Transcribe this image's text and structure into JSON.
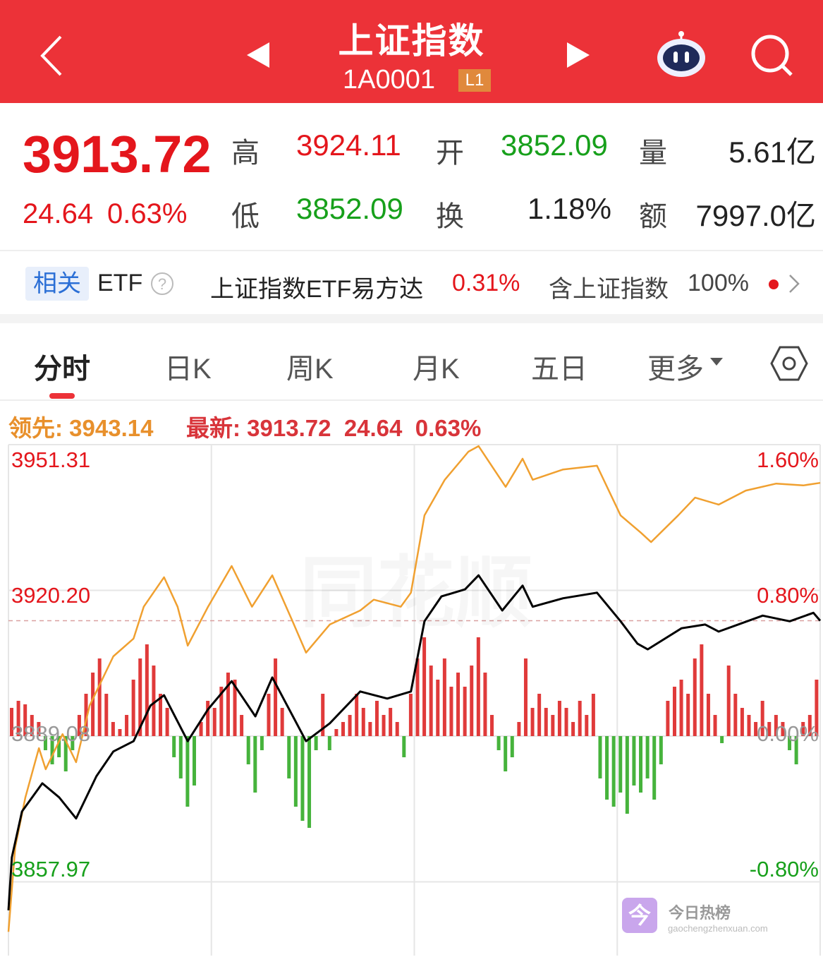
{
  "header": {
    "title": "上证指数",
    "code": "1A0001",
    "level_badge": "L1",
    "icons": [
      "back-chevron-icon",
      "prev-triangle-icon",
      "next-triangle-icon",
      "robot-assistant-icon",
      "search-icon"
    ]
  },
  "quote": {
    "price": "3913.72",
    "change": "24.64",
    "change_pct": "0.63%",
    "high_label": "高",
    "high": "3924.11",
    "open_label": "开",
    "open": "3852.09",
    "volume_label": "量",
    "volume": "5.61亿",
    "low_label": "低",
    "low": "3852.09",
    "turnover_label": "换",
    "turnover": "1.18%",
    "amount_label": "额",
    "amount": "7997.0亿"
  },
  "etf": {
    "tag": "相关",
    "label": "ETF",
    "help_icon": "question-circle-icon",
    "fund_name": "上证指数ETF易方达",
    "fund_change": "0.31%",
    "contains_label": "含上证指数",
    "contains_pct": "100%"
  },
  "tabs": [
    {
      "label": "分时",
      "active": true
    },
    {
      "label": "日K"
    },
    {
      "label": "周K"
    },
    {
      "label": "月K"
    },
    {
      "label": "五日"
    },
    {
      "label": "更多"
    }
  ],
  "chart_legend": {
    "lead_label": "领先:",
    "lead_value": "3943.14",
    "latest_label": "最新:",
    "latest_value": "3913.72",
    "latest_change": "24.64",
    "latest_pct": "0.63%"
  },
  "watermark": "同花顺",
  "footer_logo": {
    "title": "今日热榜",
    "url": "gaochengzhenxuan.com"
  },
  "colors": {
    "header": "#ec3238",
    "up": "#e4161c",
    "down": "#17a01b",
    "lead_line": "#f0a030",
    "price_line": "#000000"
  },
  "chart_data": {
    "type": "line",
    "x_range_minutes": [
      0,
      240
    ],
    "ylim": [
      3826.85,
      3951.31
    ],
    "prev_close": 3889.08,
    "y_ticks_left": [
      "3951.31",
      "3920.20",
      "3889.08",
      "3857.97"
    ],
    "y_ticks_right": [
      "1.60%",
      "0.80%",
      "0.00%",
      "-0.80%"
    ],
    "grid": true,
    "series": [
      {
        "key": "price",
        "points": [
          [
            0,
            3851.9
          ],
          [
            1,
            3863.2
          ],
          [
            4,
            3873.0
          ],
          [
            10,
            3879.0
          ],
          [
            15,
            3876.0
          ],
          [
            20,
            3871.5
          ],
          [
            26,
            3880.5
          ],
          [
            31,
            3885.8
          ],
          [
            37,
            3888.0
          ],
          [
            42,
            3895.6
          ],
          [
            46,
            3897.8
          ],
          [
            53,
            3888.0
          ],
          [
            59,
            3894.8
          ],
          [
            66,
            3900.8
          ],
          [
            73,
            3893.3
          ],
          [
            78,
            3901.6
          ],
          [
            88,
            3888.0
          ],
          [
            95,
            3891.8
          ],
          [
            104,
            3898.6
          ],
          [
            112,
            3897.1
          ],
          [
            119,
            3898.6
          ],
          [
            123,
            3913.6
          ],
          [
            128,
            3918.9
          ],
          [
            135,
            3920.4
          ],
          [
            139,
            3923.4
          ],
          [
            146,
            3915.9
          ],
          [
            152,
            3921.2
          ],
          [
            155,
            3916.7
          ],
          [
            164,
            3918.5
          ],
          [
            174,
            3919.7
          ],
          [
            181,
            3913.6
          ],
          [
            186,
            3908.8
          ],
          [
            189,
            3907.6
          ],
          [
            199,
            3912.1
          ],
          [
            206,
            3912.9
          ],
          [
            210,
            3911.4
          ],
          [
            223,
            3914.8
          ],
          [
            231,
            3913.6
          ],
          [
            238,
            3915.4
          ],
          [
            240,
            3913.72
          ]
        ]
      },
      {
        "key": "lead",
        "points": [
          [
            0,
            3847.3
          ],
          [
            2,
            3865.4
          ],
          [
            5,
            3876.0
          ],
          [
            9,
            3886.5
          ],
          [
            11,
            3882.0
          ],
          [
            16,
            3889.5
          ],
          [
            20,
            3883.5
          ],
          [
            24,
            3895.6
          ],
          [
            31,
            3906.1
          ],
          [
            37,
            3909.9
          ],
          [
            40,
            3916.7
          ],
          [
            46,
            3923.0
          ],
          [
            50,
            3916.7
          ],
          [
            53,
            3908.4
          ],
          [
            59,
            3916.7
          ],
          [
            66,
            3925.4
          ],
          [
            72,
            3916.7
          ],
          [
            78,
            3923.4
          ],
          [
            84,
            3913.6
          ],
          [
            88,
            3906.9
          ],
          [
            95,
            3912.9
          ],
          [
            104,
            3915.9
          ],
          [
            108,
            3918.2
          ],
          [
            116,
            3916.7
          ],
          [
            119,
            3919.7
          ],
          [
            123,
            3936.2
          ],
          [
            129,
            3943.8
          ],
          [
            136,
            3949.8
          ],
          [
            139,
            3951.0
          ],
          [
            147,
            3942.3
          ],
          [
            152,
            3948.3
          ],
          [
            155,
            3943.8
          ],
          [
            164,
            3946.0
          ],
          [
            174,
            3946.8
          ],
          [
            181,
            3936.2
          ],
          [
            187,
            3932.5
          ],
          [
            190,
            3930.5
          ],
          [
            198,
            3936.2
          ],
          [
            203,
            3940.0
          ],
          [
            210,
            3938.5
          ],
          [
            218,
            3941.5
          ],
          [
            227,
            3943.0
          ],
          [
            235,
            3942.6
          ],
          [
            240,
            3943.14
          ]
        ]
      }
    ],
    "diff_bars": [
      40,
      50,
      45,
      30,
      20,
      -20,
      -40,
      -30,
      -50,
      -20,
      30,
      60,
      90,
      110,
      60,
      20,
      10,
      30,
      80,
      110,
      130,
      100,
      60,
      40,
      -30,
      -60,
      -100,
      -70,
      20,
      50,
      40,
      70,
      90,
      80,
      30,
      -40,
      -80,
      -20,
      60,
      110,
      40,
      -60,
      -100,
      -120,
      -130,
      -20,
      60,
      -20,
      10,
      20,
      30,
      60,
      40,
      20,
      50,
      30,
      40,
      20,
      -30,
      60,
      110,
      140,
      100,
      80,
      110,
      70,
      90,
      70,
      100,
      140,
      90,
      30,
      -20,
      -50,
      -30,
      20,
      110,
      40,
      60,
      40,
      30,
      50,
      40,
      20,
      50,
      30,
      60,
      -60,
      -90,
      -100,
      -80,
      -110,
      -70,
      -80,
      -60,
      -90,
      -40,
      50,
      70,
      80,
      60,
      110,
      130,
      60,
      30,
      -10,
      100,
      60,
      40,
      30,
      20,
      50,
      20,
      30,
      20,
      -20,
      -40,
      20,
      30,
      80
    ]
  }
}
